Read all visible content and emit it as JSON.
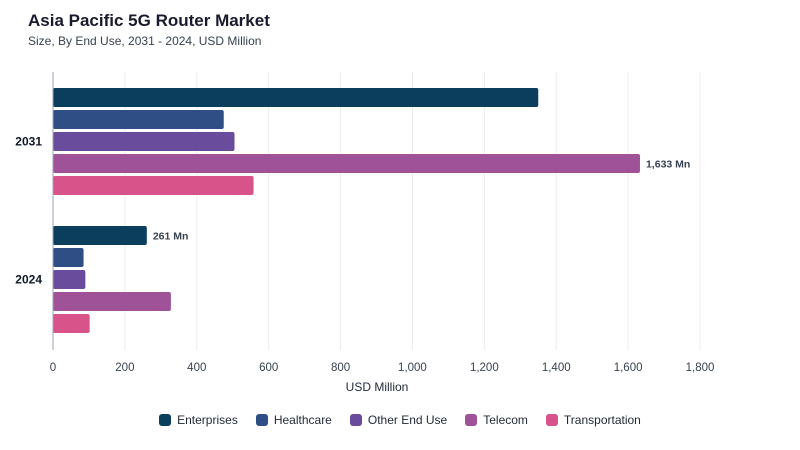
{
  "chart_data": {
    "type": "bar",
    "orientation": "horizontal",
    "title": "Asia Pacific 5G Router Market",
    "subtitle": "Size, By End Use, 2031 - 2024, USD Million",
    "xlabel": "USD Million",
    "ylabel": "",
    "xlim": [
      0,
      1800
    ],
    "xticks": [
      0,
      200,
      400,
      600,
      800,
      1000,
      1200,
      1400,
      1600,
      1800
    ],
    "xtick_labels": [
      "0",
      "200",
      "400",
      "600",
      "800",
      "1,000",
      "1,200",
      "1,400",
      "1,600",
      "1,800"
    ],
    "categories": [
      "2031",
      "2024"
    ],
    "series": [
      {
        "name": "Enterprises",
        "color": "#0b3d5c",
        "values": [
          1350,
          261
        ]
      },
      {
        "name": "Healthcare",
        "color": "#2e4e85",
        "values": [
          475,
          85
        ]
      },
      {
        "name": "Other End Use",
        "color": "#6a4c9c",
        "values": [
          505,
          90
        ]
      },
      {
        "name": "Telecom",
        "color": "#a05298",
        "values": [
          1633,
          328
        ]
      },
      {
        "name": "Transportation",
        "color": "#d8538a",
        "values": [
          558,
          102
        ]
      }
    ],
    "data_labels": [
      {
        "category": "2031",
        "series": "Telecom",
        "text": "1,633 Mn"
      },
      {
        "category": "2024",
        "series": "Enterprises",
        "text": "261 Mn"
      }
    ],
    "grid": true,
    "legend_position": "bottom"
  }
}
